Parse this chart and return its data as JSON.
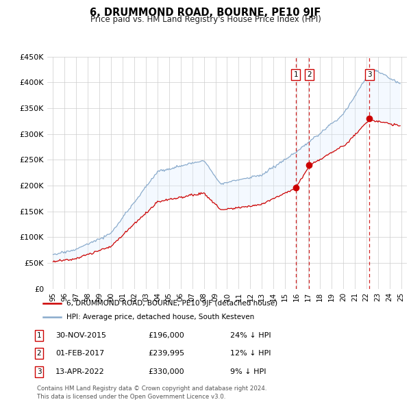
{
  "title": "6, DRUMMOND ROAD, BOURNE, PE10 9JF",
  "subtitle": "Price paid vs. HM Land Registry's House Price Index (HPI)",
  "legend_line1": "6, DRUMMOND ROAD, BOURNE, PE10 9JF (detached house)",
  "legend_line2": "HPI: Average price, detached house, South Kesteven",
  "footer": "Contains HM Land Registry data © Crown copyright and database right 2024.\nThis data is licensed under the Open Government Licence v3.0.",
  "sales": [
    {
      "num": 1,
      "date": "30-NOV-2015",
      "price": "£196,000",
      "pct": "24%",
      "year": 2015.92
    },
    {
      "num": 2,
      "date": "01-FEB-2017",
      "price": "£239,995",
      "pct": "12%",
      "year": 2017.08
    },
    {
      "num": 3,
      "date": "13-APR-2022",
      "price": "£330,000",
      "pct": "9%",
      "year": 2022.28
    }
  ],
  "sale_values": [
    196000,
    239995,
    330000
  ],
  "sale_years": [
    2015.92,
    2017.08,
    2022.28
  ],
  "ylim": [
    0,
    450000
  ],
  "xlim": [
    1994.5,
    2025.5
  ],
  "yticks": [
    0,
    50000,
    100000,
    150000,
    200000,
    250000,
    300000,
    350000,
    400000,
    450000
  ],
  "ytick_labels": [
    "£0",
    "£50K",
    "£100K",
    "£150K",
    "£200K",
    "£250K",
    "£300K",
    "£350K",
    "£400K",
    "£450K"
  ],
  "red_color": "#cc0000",
  "blue_color": "#88aacc",
  "shade_color": "#ddeeff",
  "grid_color": "#cccccc",
  "xtick_years": [
    1995,
    1996,
    1997,
    1998,
    1999,
    2000,
    2001,
    2002,
    2003,
    2004,
    2005,
    2006,
    2007,
    2008,
    2009,
    2010,
    2011,
    2012,
    2013,
    2014,
    2015,
    2016,
    2017,
    2018,
    2019,
    2020,
    2021,
    2022,
    2023,
    2024,
    2025
  ],
  "xtick_labels": [
    "95",
    "96",
    "97",
    "98",
    "99",
    "00",
    "01",
    "02",
    "03",
    "04",
    "05",
    "06",
    "07",
    "08",
    "09",
    "10",
    "11",
    "12",
    "13",
    "14",
    "15",
    "16",
    "17",
    "18",
    "19",
    "20",
    "21",
    "22",
    "23",
    "24",
    "25"
  ]
}
